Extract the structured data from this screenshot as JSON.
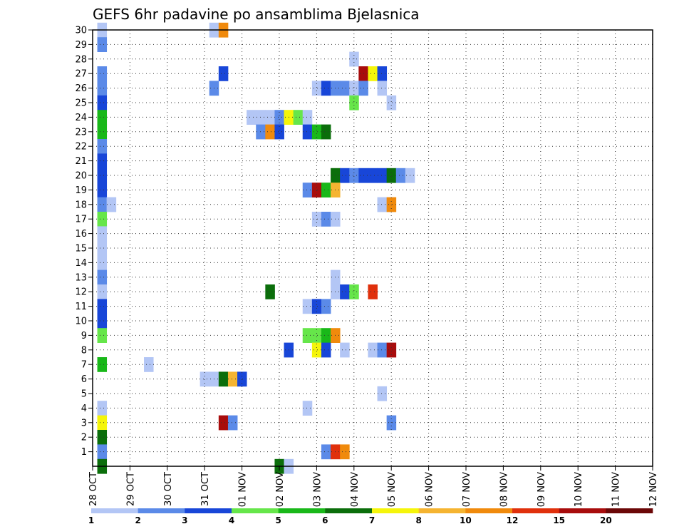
{
  "chart_data": {
    "type": "heatmap",
    "title": "GEFS 6hr padavine po ansamblima Bjelasnica",
    "xlabel": "",
    "ylabel": "",
    "x_dates": [
      "28 OCT",
      "29 OCT",
      "30 OCT",
      "31 OCT",
      "01 NOV",
      "02 NOV",
      "03 NOV",
      "04 NOV",
      "05 NOV",
      "06 NOV",
      "07 NOV",
      "08 NOV",
      "09 NOV",
      "10 NOV",
      "11 NOV",
      "12 NOV"
    ],
    "steps_per_day": 4,
    "x_start_offset_steps": 0,
    "x_total_steps": 60,
    "y_members": [
      1,
      2,
      3,
      4,
      5,
      6,
      7,
      8,
      9,
      10,
      11,
      12,
      13,
      14,
      15,
      16,
      17,
      18,
      19,
      20,
      21,
      22,
      23,
      24,
      25,
      26,
      27,
      28,
      29,
      30
    ],
    "y_range": [
      0,
      30
    ],
    "grid": true,
    "legend_labels": [
      "1",
      "2",
      "3",
      "4",
      "5",
      "6",
      "7",
      "8",
      "10",
      "12",
      "15",
      "20"
    ],
    "legend_colors": [
      "#b3c6f5",
      "#5b8ae8",
      "#1846d8",
      "#66e64a",
      "#19b819",
      "#0b6e0b",
      "#f5f50a",
      "#f5b431",
      "#f08a0c",
      "#e0300c",
      "#a80c0c",
      "#6b0707"
    ],
    "cells": [
      [
        30,
        0,
        1
      ],
      [
        30,
        12,
        1
      ],
      [
        30,
        13,
        9
      ],
      [
        29,
        0,
        2
      ],
      [
        28,
        27,
        1
      ],
      [
        27,
        0,
        2
      ],
      [
        27,
        13,
        3
      ],
      [
        27,
        28,
        11
      ],
      [
        27,
        29,
        7
      ],
      [
        27,
        30,
        3
      ],
      [
        26,
        0,
        2
      ],
      [
        26,
        12,
        2
      ],
      [
        26,
        23,
        1
      ],
      [
        26,
        24,
        3
      ],
      [
        26,
        25,
        2
      ],
      [
        26,
        26,
        2
      ],
      [
        26,
        27,
        1
      ],
      [
        26,
        28,
        2
      ],
      [
        26,
        30,
        1
      ],
      [
        25,
        0,
        3
      ],
      [
        25,
        27,
        4
      ],
      [
        25,
        31,
        1
      ],
      [
        24,
        0,
        5
      ],
      [
        24,
        16,
        1
      ],
      [
        24,
        17,
        1
      ],
      [
        24,
        18,
        1
      ],
      [
        24,
        19,
        2
      ],
      [
        24,
        20,
        7
      ],
      [
        24,
        21,
        4
      ],
      [
        24,
        22,
        1
      ],
      [
        23,
        0,
        5
      ],
      [
        23,
        17,
        2
      ],
      [
        23,
        18,
        9
      ],
      [
        23,
        19,
        3
      ],
      [
        23,
        22,
        3
      ],
      [
        23,
        23,
        5
      ],
      [
        23,
        24,
        6
      ],
      [
        22,
        0,
        2
      ],
      [
        21,
        0,
        3
      ],
      [
        20,
        0,
        3
      ],
      [
        20,
        25,
        6
      ],
      [
        20,
        26,
        3
      ],
      [
        20,
        27,
        2
      ],
      [
        20,
        28,
        3
      ],
      [
        20,
        29,
        3
      ],
      [
        20,
        30,
        3
      ],
      [
        20,
        31,
        6
      ],
      [
        20,
        32,
        2
      ],
      [
        20,
        33,
        1
      ],
      [
        19,
        0,
        3
      ],
      [
        19,
        22,
        2
      ],
      [
        19,
        23,
        11
      ],
      [
        19,
        24,
        5
      ],
      [
        19,
        25,
        8
      ],
      [
        18,
        0,
        2
      ],
      [
        18,
        1,
        1
      ],
      [
        18,
        30,
        1
      ],
      [
        18,
        31,
        9
      ],
      [
        17,
        0,
        4
      ],
      [
        17,
        23,
        1
      ],
      [
        17,
        24,
        2
      ],
      [
        17,
        25,
        1
      ],
      [
        16,
        0,
        1
      ],
      [
        15,
        0,
        1
      ],
      [
        14,
        0,
        1
      ],
      [
        13,
        0,
        2
      ],
      [
        13,
        25,
        1
      ],
      [
        12,
        0,
        1
      ],
      [
        12,
        18,
        6
      ],
      [
        12,
        25,
        1
      ],
      [
        12,
        26,
        3
      ],
      [
        12,
        27,
        4
      ],
      [
        12,
        29,
        10
      ],
      [
        11,
        0,
        3
      ],
      [
        11,
        22,
        1
      ],
      [
        11,
        23,
        3
      ],
      [
        11,
        24,
        2
      ],
      [
        10,
        0,
        3
      ],
      [
        9,
        0,
        4
      ],
      [
        9,
        22,
        4
      ],
      [
        9,
        23,
        4
      ],
      [
        9,
        24,
        5
      ],
      [
        9,
        25,
        9
      ],
      [
        8,
        20,
        3
      ],
      [
        8,
        23,
        7
      ],
      [
        8,
        24,
        3
      ],
      [
        8,
        26,
        1
      ],
      [
        8,
        29,
        1
      ],
      [
        8,
        30,
        2
      ],
      [
        8,
        31,
        11
      ],
      [
        7,
        0,
        5
      ],
      [
        7,
        5,
        1
      ],
      [
        6,
        11,
        1
      ],
      [
        6,
        12,
        1
      ],
      [
        6,
        13,
        6
      ],
      [
        6,
        14,
        8
      ],
      [
        6,
        15,
        3
      ],
      [
        5,
        30,
        1
      ],
      [
        4,
        0,
        1
      ],
      [
        4,
        22,
        1
      ],
      [
        3,
        0,
        7
      ],
      [
        3,
        13,
        11
      ],
      [
        3,
        14,
        2
      ],
      [
        3,
        31,
        2
      ],
      [
        2,
        0,
        6
      ],
      [
        1,
        0,
        2
      ],
      [
        1,
        24,
        2
      ],
      [
        1,
        25,
        10
      ],
      [
        1,
        26,
        9
      ],
      [
        0,
        0,
        6
      ],
      [
        0,
        19,
        6
      ],
      [
        0,
        20,
        1
      ]
    ]
  }
}
